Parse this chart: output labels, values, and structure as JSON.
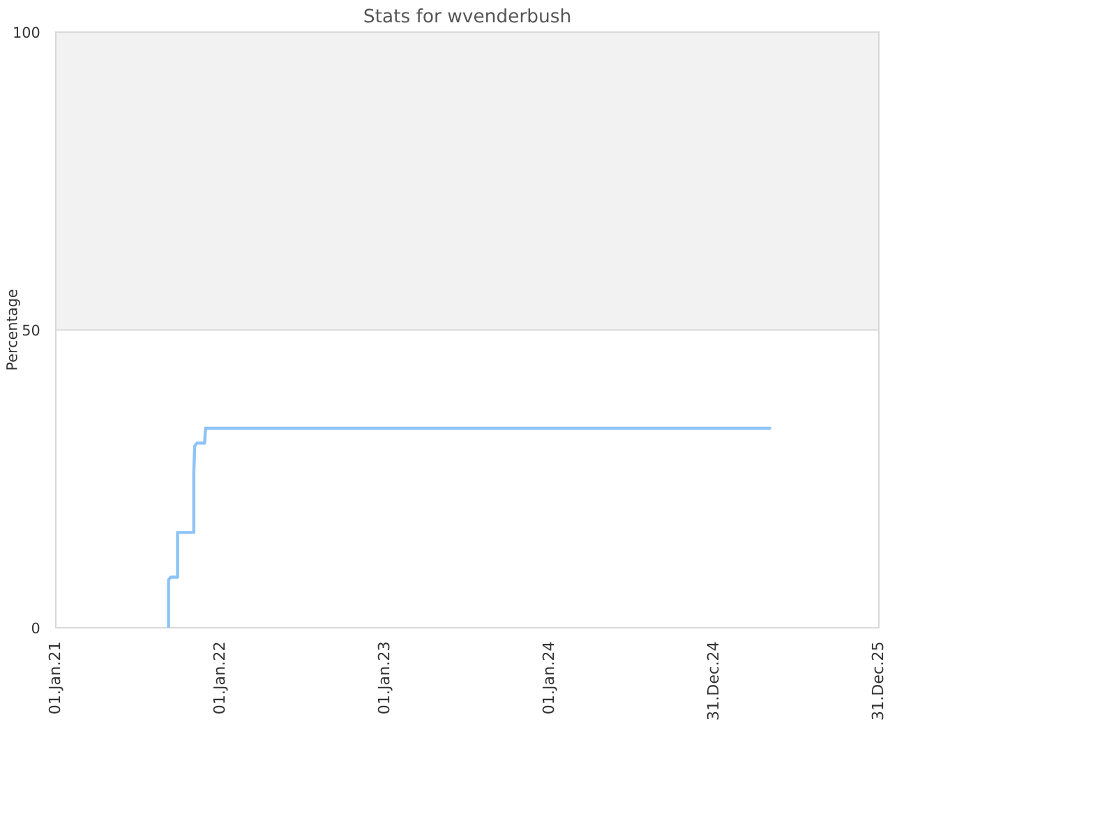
{
  "chart_data": {
    "type": "line",
    "title": "Stats for wvenderbush",
    "ylabel": "Percentage",
    "series": [
      {
        "color": "#8fc3f5",
        "x": [
          "2021-09-08",
          "2021-09-08",
          "2021-09-13",
          "2021-09-28",
          "2021-09-28",
          "2021-10-04",
          "2021-11-03",
          "2021-11-03",
          "2021-11-05",
          "2021-11-10",
          "2021-11-27",
          "2021-11-29",
          "2025-05-03"
        ],
        "values": [
          0,
          8,
          8.5,
          8.5,
          16,
          16,
          16,
          26,
          30.5,
          31,
          31,
          33.5,
          33.5
        ]
      }
    ],
    "xlim": [
      "2021-01-01",
      "2025-12-31"
    ],
    "xticks": [
      {
        "value": "2021-01-01",
        "label": "01.Jan.21"
      },
      {
        "value": "2022-01-01",
        "label": "01.Jan.22"
      },
      {
        "value": "2023-01-01",
        "label": "01.Jan.23"
      },
      {
        "value": "2024-01-01",
        "label": "01.Jan.24"
      },
      {
        "value": "2024-12-31",
        "label": "31.Dec.24"
      },
      {
        "value": "2025-12-31",
        "label": "31.Dec.25"
      }
    ],
    "ylim": [
      0,
      100
    ],
    "yticks": [
      0,
      50,
      100
    ],
    "bands": [
      {
        "axis": "y",
        "from": 50,
        "to": 100,
        "color": "#f2f2f2"
      }
    ],
    "grid": "y"
  }
}
